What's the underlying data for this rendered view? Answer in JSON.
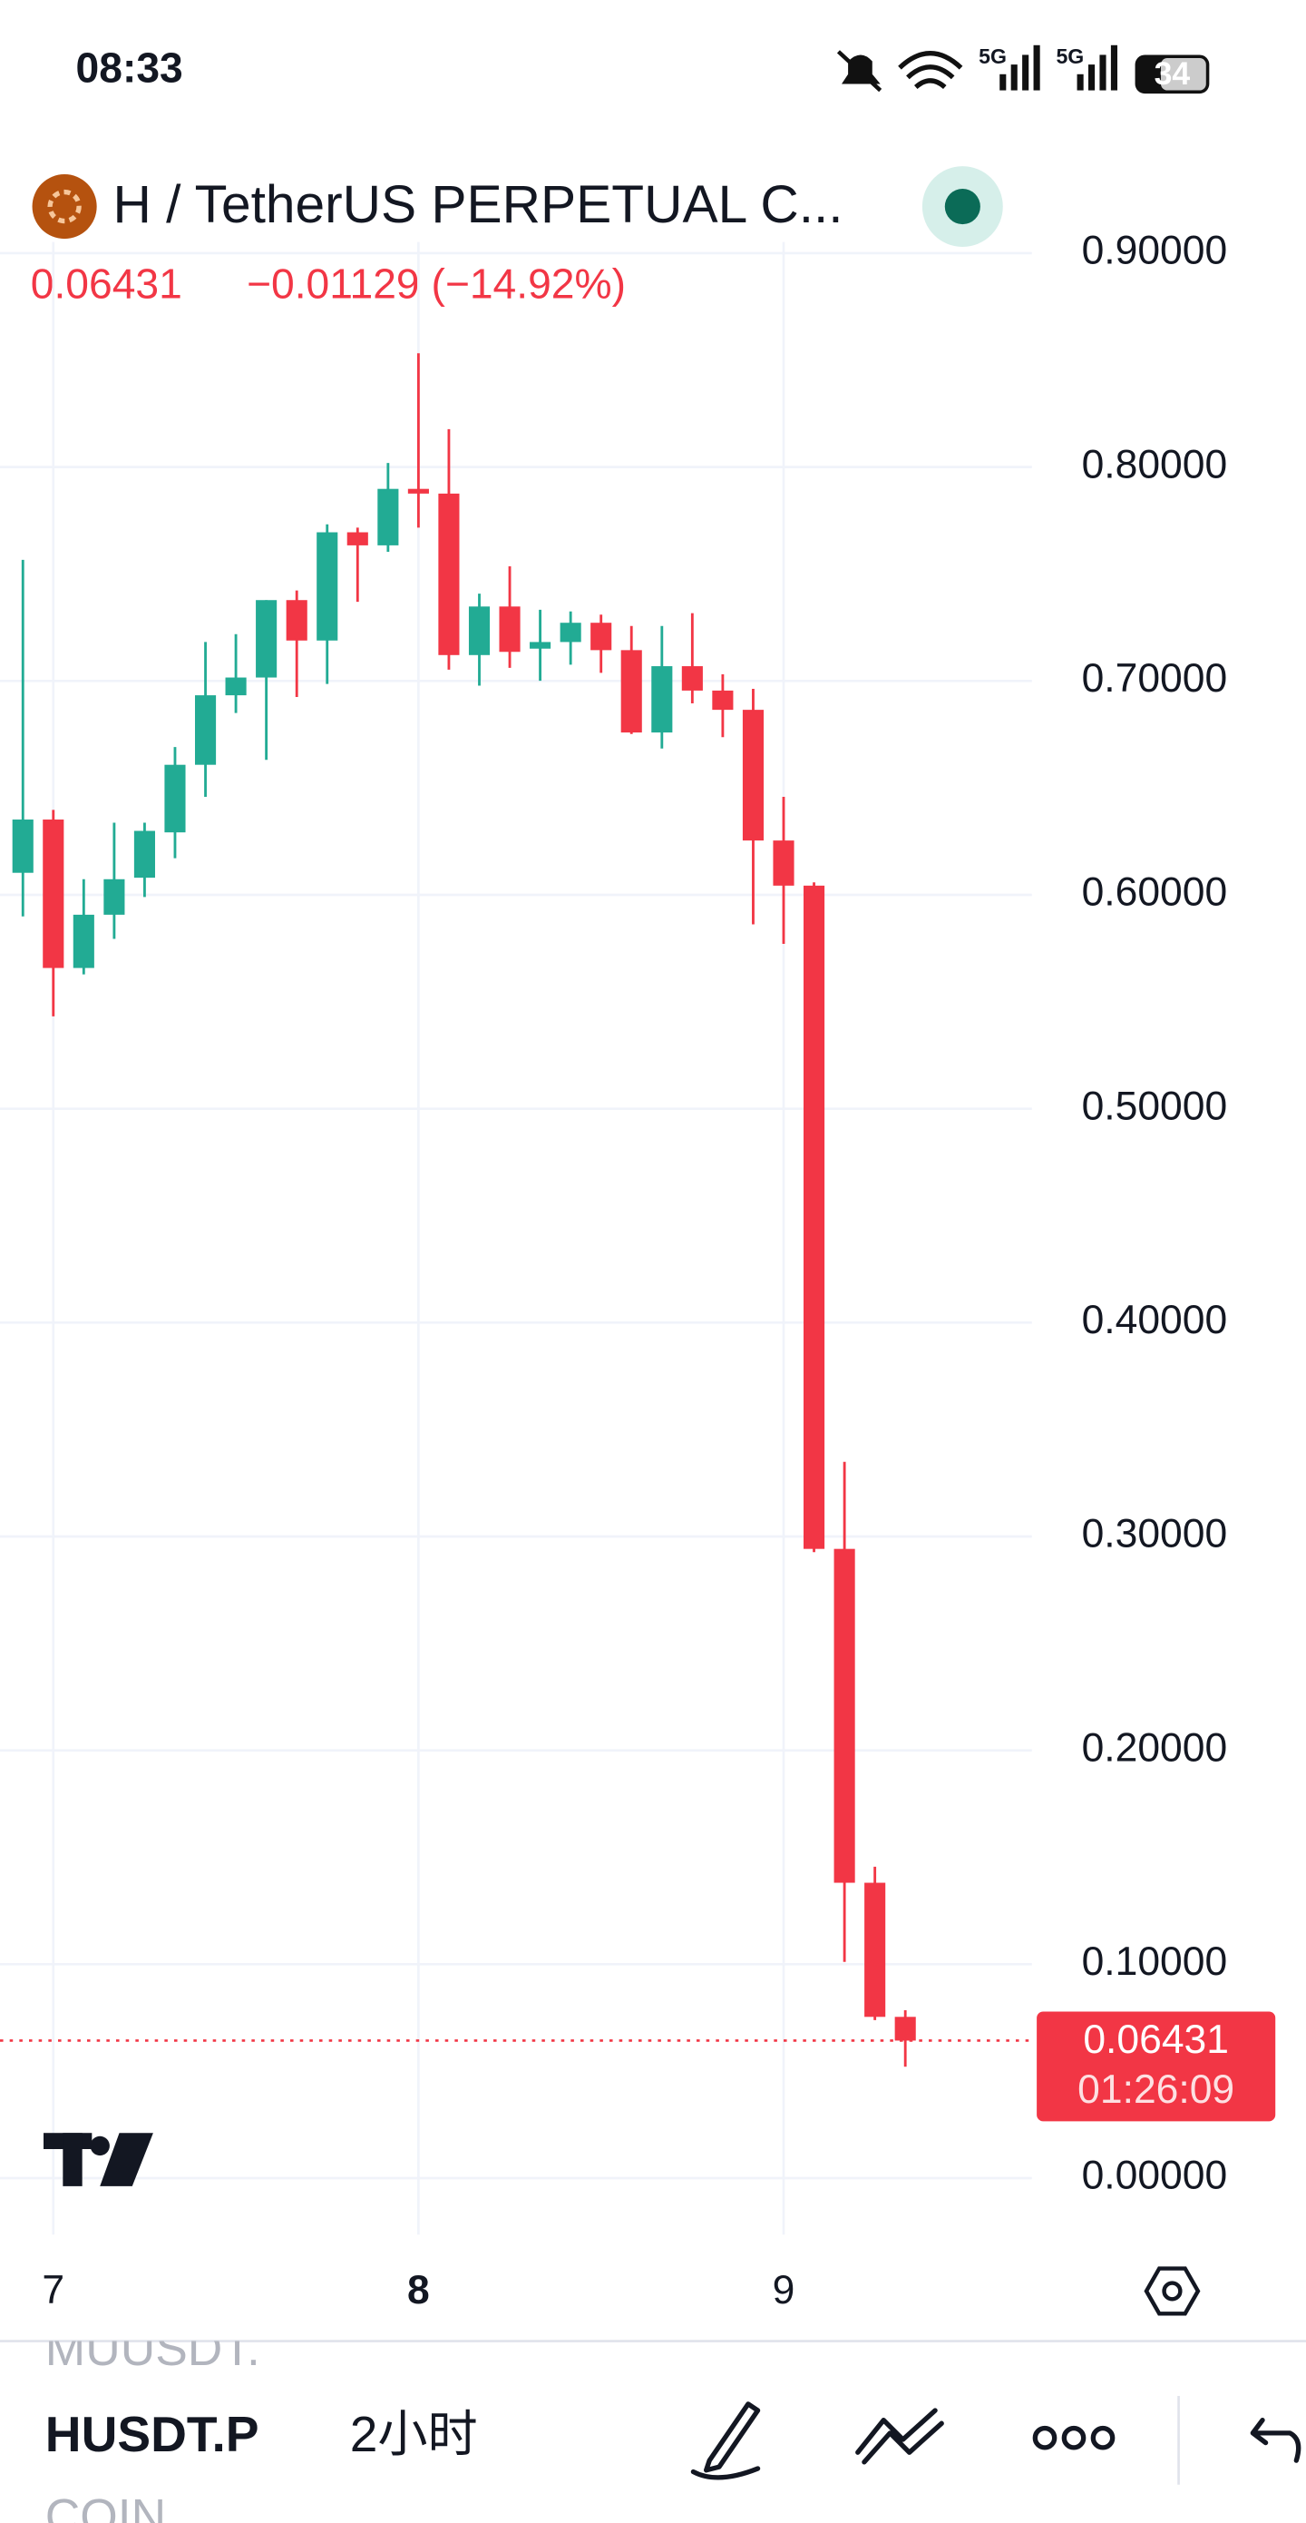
{
  "status_bar": {
    "time": "08:33",
    "network": [
      "5G",
      "5G"
    ],
    "battery": 34
  },
  "chart_data": {
    "type": "candlestick",
    "title": "H / TetherUS PERPETUAL C...",
    "last_price": 0.06431,
    "change_label": "−0.01129 (−14.92%)",
    "countdown": "01:26:09",
    "up_color": "#22ab94",
    "down_color": "#f23645",
    "x": [
      6.9167,
      7,
      7.0833,
      7.1667,
      7.25,
      7.3333,
      7.4167,
      7.5,
      7.5833,
      7.6667,
      7.75,
      7.8333,
      7.9167,
      8,
      8.0833,
      8.1667,
      8.25,
      8.3333,
      8.4167,
      8.5,
      8.5833,
      8.6667,
      8.75,
      8.8333,
      8.9167,
      9,
      9.0833,
      9.1667,
      9.25,
      9.3333
    ],
    "open": [
      0.6103,
      0.6352,
      0.5658,
      0.5907,
      0.608,
      0.6292,
      0.6608,
      0.6933,
      0.7016,
      0.7378,
      0.7189,
      0.7695,
      0.7634,
      0.7898,
      0.7876,
      0.7121,
      0.7348,
      0.7151,
      0.7182,
      0.7272,
      0.7144,
      0.6759,
      0.7069,
      0.6955,
      0.6865,
      0.6254,
      0.6043,
      0.2942,
      0.1381,
      0.0754
    ],
    "high": [
      0.7566,
      0.6397,
      0.6073,
      0.6337,
      0.6337,
      0.6691,
      0.7182,
      0.7219,
      0.7378,
      0.7423,
      0.7732,
      0.7717,
      0.8019,
      0.8532,
      0.8177,
      0.7408,
      0.7536,
      0.7333,
      0.7325,
      0.731,
      0.7257,
      0.7257,
      0.7317,
      0.7031,
      0.6963,
      0.6458,
      0.6058,
      0.3349,
      0.1456,
      0.0785
    ],
    "low": [
      0.5899,
      0.5432,
      0.5628,
      0.5794,
      0.599,
      0.6171,
      0.6458,
      0.685,
      0.6631,
      0.6925,
      0.6986,
      0.737,
      0.7604,
      0.7717,
      0.7053,
      0.6978,
      0.7061,
      0.7001,
      0.7076,
      0.7038,
      0.6752,
      0.6684,
      0.6895,
      0.6737,
      0.5862,
      0.5771,
      0.2927,
      0.1011,
      0.0739,
      0.0521
    ],
    "close": [
      0.6352,
      0.5658,
      0.5907,
      0.6073,
      0.6299,
      0.6608,
      0.6933,
      0.7016,
      0.7378,
      0.7189,
      0.7695,
      0.7634,
      0.7898,
      0.7876,
      0.7121,
      0.7348,
      0.7136,
      0.7182,
      0.7272,
      0.7144,
      0.6759,
      0.7069,
      0.6955,
      0.6865,
      0.6254,
      0.6043,
      0.2942,
      0.1381,
      0.0754,
      0.06431
    ],
    "xlim": [
      6.854,
      9.68
    ],
    "xticks": [
      7,
      8,
      9
    ],
    "ylim": [
      -0.0264,
      0.9452
    ],
    "yticks": [
      {
        "value": 0.9,
        "label": "0.90000"
      },
      {
        "value": 0.8,
        "label": "0.80000"
      },
      {
        "value": 0.7,
        "label": "0.70000"
      },
      {
        "value": 0.6,
        "label": "0.60000"
      },
      {
        "value": 0.5,
        "label": "0.50000"
      },
      {
        "value": 0.4,
        "label": "0.40000"
      },
      {
        "value": 0.3,
        "label": "0.30000"
      },
      {
        "value": 0.2,
        "label": "0.20000"
      },
      {
        "value": 0.1,
        "label": "0.10000"
      },
      {
        "value": 0,
        "label": "0.00000"
      }
    ],
    "grid": true
  },
  "toolbar": {
    "list_above": "MUUSDT.",
    "symbol": "HUSDT.P",
    "interval": "2小时",
    "list_below": "COIN"
  }
}
